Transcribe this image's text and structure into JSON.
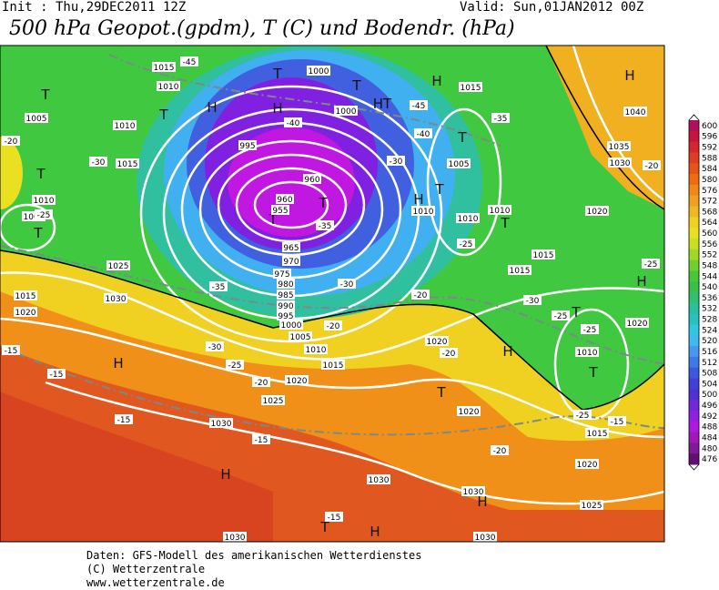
{
  "header": {
    "init": "Init : Thu,29DEC2011 12Z",
    "valid": "Valid: Sun,01JAN2012 00Z",
    "title": "500 hPa Geopot.(gpdm), T (C) und Bodendr. (hPa)"
  },
  "colorbar": {
    "levels": [
      600,
      596,
      592,
      588,
      584,
      580,
      576,
      572,
      568,
      564,
      560,
      556,
      552,
      548,
      544,
      540,
      536,
      532,
      528,
      524,
      520,
      516,
      512,
      508,
      504,
      500,
      496,
      492,
      488,
      484,
      480,
      476
    ],
    "colors": [
      "#b0105a",
      "#c8143c",
      "#d8242c",
      "#e03c20",
      "#e85418",
      "#f06c10",
      "#f08818",
      "#f0a020",
      "#f0b820",
      "#f0d020",
      "#e8e020",
      "#c8e020",
      "#a0d828",
      "#70d030",
      "#48c838",
      "#38c048",
      "#30c070",
      "#28c0a0",
      "#28c0c0",
      "#30c8e0",
      "#40b8f0",
      "#4898f0",
      "#4078e8",
      "#3c58e0",
      "#4040d8",
      "#5030d0",
      "#7028d8",
      "#9020e0",
      "#b018e0",
      "#a018b8",
      "#801898",
      "#601070"
    ]
  },
  "map": {
    "labels": [
      "T",
      "T",
      "H",
      "T",
      "H",
      "T",
      "HT",
      "H",
      "T",
      "H",
      "T",
      "T",
      "T",
      "T",
      "T",
      "H",
      "T",
      "T",
      "H",
      "T",
      "H",
      "T",
      "H",
      "H",
      "H",
      "T",
      "H",
      "1015",
      "1010",
      "1005",
      "1010",
      "1015",
      "1010",
      "1005",
      "1025",
      "1015",
      "1020",
      "1030",
      "1000",
      "1000",
      "995",
      "960",
      "960",
      "955",
      "965",
      "970",
      "975",
      "980",
      "985",
      "990",
      "995",
      "1000",
      "1005",
      "1010",
      "1015",
      "1020",
      "1025",
      "1030",
      "1030",
      "1030",
      "1030",
      "1030",
      "1025",
      "1020",
      "1015",
      "1010",
      "1020",
      "1015",
      "1015",
      "1020",
      "1030",
      "1035",
      "1040",
      "1010",
      "1010",
      "1005",
      "1010",
      "1015",
      "1020",
      "1020",
      "-45",
      "-40",
      "-35",
      "-30",
      "-25",
      "-20",
      "-35",
      "-30",
      "-20",
      "-25",
      "-20",
      "-30",
      "-15",
      "-15",
      "-15",
      "-15",
      "-15",
      "-20",
      "-20",
      "-25",
      "-15",
      "-20",
      "-25",
      "-35",
      "-40",
      "-45",
      "-30",
      "-25",
      "-25",
      "-20",
      "-25",
      "-30"
    ]
  },
  "footer": {
    "line1": "Daten: GFS-Modell des amerikanischen Wetterdienstes",
    "line2": "(C) Wetterzentrale",
    "line3": "www.wetterzentrale.de"
  }
}
